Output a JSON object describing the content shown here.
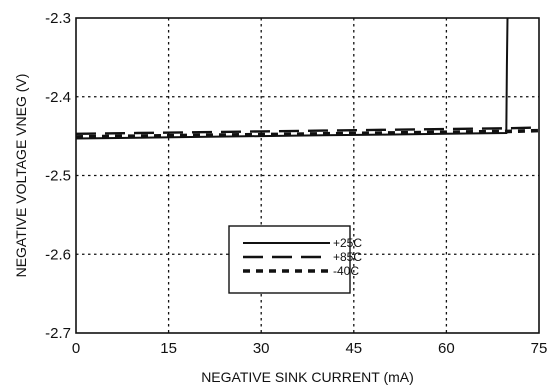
{
  "chart_data": {
    "type": "line",
    "title": "",
    "xlabel": "NEGATIVE SINK CURRENT (mA)",
    "ylabel": "NEGATIVE VOLTAGE VNEG (V)",
    "xlim": [
      0,
      75
    ],
    "ylim": [
      -2.7,
      -2.3
    ],
    "x_ticks": [
      0,
      15,
      30,
      45,
      60,
      75
    ],
    "x_tick_labels": [
      "0",
      "15",
      "30",
      "45",
      "60",
      "75"
    ],
    "y_ticks": [
      -2.7,
      -2.6,
      -2.5,
      -2.4,
      -2.3
    ],
    "y_tick_labels": [
      "-2.7",
      "-2.6",
      "-2.5",
      "-2.4",
      "-2.3"
    ],
    "grid": true,
    "grid_style": "dotted",
    "legend_position": "lower-center",
    "series": [
      {
        "name": "+25C",
        "style": "solid",
        "color": "#111111",
        "x": [
          0,
          10,
          20,
          30,
          40,
          50,
          60,
          69.7,
          69.8,
          69.9
        ],
        "y": [
          -2.453,
          -2.452,
          -2.451,
          -2.45,
          -2.449,
          -2.448,
          -2.447,
          -2.446,
          -2.36,
          -2.3
        ]
      },
      {
        "name": "+85C",
        "style": "long-dash",
        "color": "#111111",
        "x": [
          0,
          10,
          20,
          30,
          40,
          50,
          60,
          70,
          75
        ],
        "y": [
          -2.447,
          -2.446,
          -2.445,
          -2.444,
          -2.443,
          -2.442,
          -2.441,
          -2.44,
          -2.439
        ]
      },
      {
        "name": "-40C",
        "style": "short-dash",
        "color": "#111111",
        "x": [
          0,
          10,
          20,
          30,
          40,
          50,
          60,
          70,
          75
        ],
        "y": [
          -2.451,
          -2.45,
          -2.449,
          -2.448,
          -2.447,
          -2.446,
          -2.445,
          -2.444,
          -2.443
        ]
      }
    ]
  }
}
